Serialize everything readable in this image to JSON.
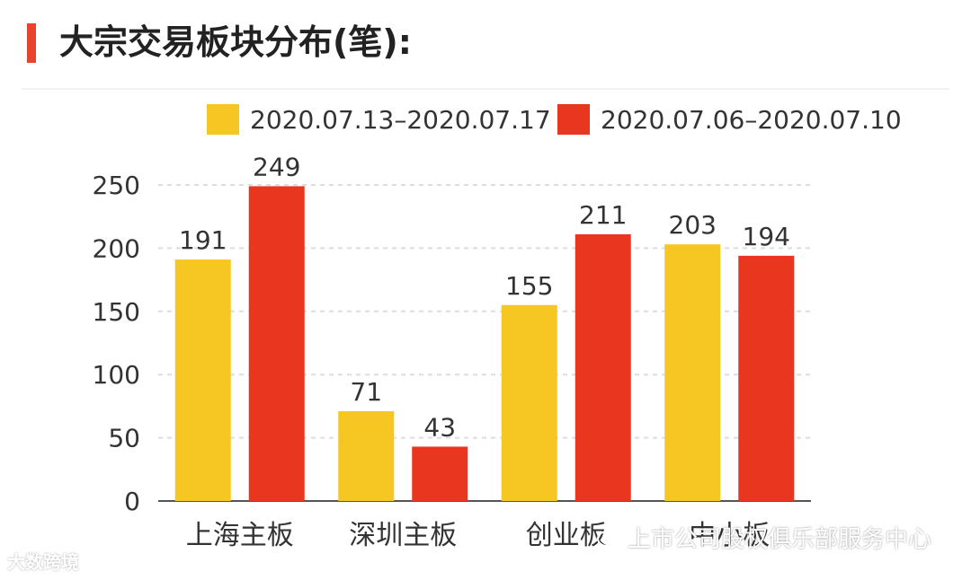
{
  "header": {
    "title": "大宗交易板块分布(笔):"
  },
  "watermarks": {
    "left": "大数跨境",
    "right": "上市公司股权俱乐部服务中心"
  },
  "chart_data": {
    "type": "bar",
    "categories": [
      "上海主板",
      "深圳主板",
      "创业板",
      "中小板"
    ],
    "series": [
      {
        "name": "2020.07.13–2020.07.17",
        "values": [
          191,
          71,
          155,
          203
        ],
        "color": "#f6c623"
      },
      {
        "name": "2020.07.06–2020.07.10",
        "values": [
          249,
          43,
          211,
          194
        ],
        "color": "#e8371e"
      }
    ],
    "yticks": [
      0,
      50,
      100,
      150,
      200,
      250
    ],
    "ylim": [
      0,
      250
    ],
    "grid": true,
    "legend": "top"
  }
}
